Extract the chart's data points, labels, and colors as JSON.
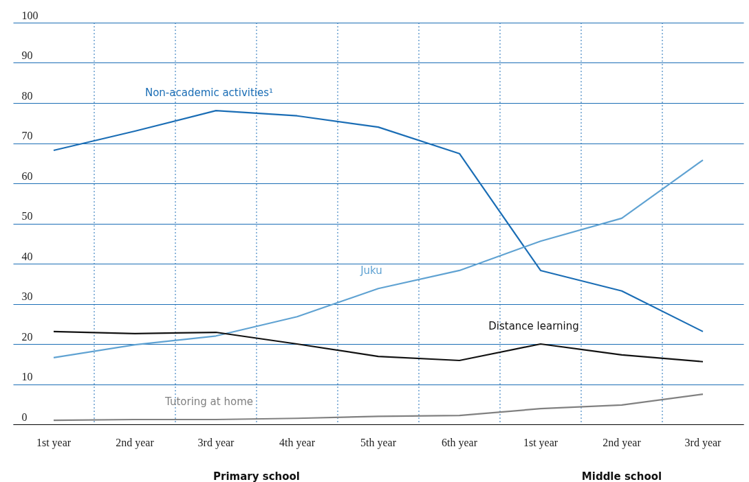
{
  "chart_data": {
    "type": "line",
    "categories": [
      "1st year",
      "2nd year",
      "3rd year",
      "4th year",
      "5th year",
      "6th year",
      "1st year",
      "2nd year",
      "3rd year"
    ],
    "series": [
      {
        "name": "Non-academic activities¹",
        "color": "#1a6db5",
        "values": [
          68.2,
          73,
          78.1,
          76.8,
          74,
          67.4,
          38.3,
          33.2,
          23.1
        ]
      },
      {
        "name": "Juku",
        "color": "#5fa2d2",
        "values": [
          16.6,
          19.8,
          22,
          26.8,
          33.8,
          38.3,
          45.6,
          51.3,
          65.8
        ]
      },
      {
        "name": "Distance learning",
        "color": "#111111",
        "values": [
          23.1,
          22.6,
          22.9,
          20,
          16.9,
          15.9,
          20,
          17.3,
          15.6
        ]
      },
      {
        "name": "Tutoring at home",
        "color": "#808080",
        "values": [
          1,
          1.2,
          1.2,
          1.5,
          2,
          2.2,
          3.9,
          4.8,
          7.5
        ]
      }
    ],
    "ylim": [
      0,
      100
    ],
    "yticks": [
      0,
      10,
      20,
      30,
      40,
      50,
      60,
      70,
      80,
      90,
      100
    ],
    "grid": true,
    "annotations": [
      "Primary school",
      "Middle school"
    ]
  }
}
